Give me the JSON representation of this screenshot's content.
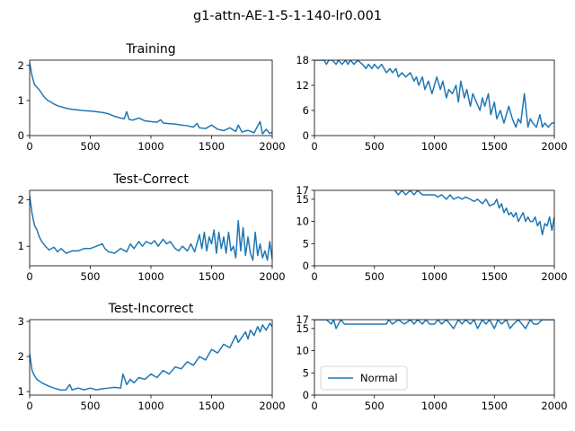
{
  "figure": {
    "suptitle": "g1-attn-AE-1-5-1-140-lr0.001"
  },
  "colors": {
    "line": "#1f77b4",
    "axes": "#000000",
    "background": "#ffffff"
  },
  "chart_data": [
    {
      "id": "training-loss",
      "type": "line",
      "title": "Training",
      "xlim": [
        0,
        2000
      ],
      "ylim": [
        0,
        2.15
      ],
      "xticks": [
        0,
        500,
        1000,
        1500,
        2000
      ],
      "yticks": [
        0,
        1,
        2
      ],
      "grid": false,
      "series": [
        {
          "x": [
            0,
            20,
            40,
            60,
            80,
            100,
            120,
            150,
            180,
            200,
            230,
            260,
            300,
            350,
            400,
            450,
            500,
            550,
            600,
            650,
            700,
            750,
            780,
            800,
            820,
            850,
            900,
            950,
            1000,
            1050,
            1080,
            1100,
            1150,
            1200,
            1250,
            1300,
            1350,
            1380,
            1400,
            1450,
            1500,
            1550,
            1600,
            1650,
            1700,
            1720,
            1750,
            1800,
            1850,
            1900,
            1920,
            1950,
            1980,
            2000
          ],
          "y": [
            2.08,
            1.7,
            1.45,
            1.38,
            1.3,
            1.2,
            1.1,
            1.0,
            0.95,
            0.9,
            0.85,
            0.82,
            0.78,
            0.75,
            0.73,
            0.71,
            0.7,
            0.68,
            0.66,
            0.62,
            0.55,
            0.5,
            0.48,
            0.68,
            0.46,
            0.44,
            0.5,
            0.42,
            0.4,
            0.38,
            0.45,
            0.36,
            0.34,
            0.33,
            0.3,
            0.28,
            0.24,
            0.35,
            0.22,
            0.2,
            0.3,
            0.18,
            0.14,
            0.22,
            0.12,
            0.3,
            0.1,
            0.15,
            0.08,
            0.4,
            0.05,
            0.18,
            0.06,
            0.1
          ]
        }
      ]
    },
    {
      "id": "training-errors",
      "type": "line",
      "title": "",
      "xlim": [
        0,
        2000
      ],
      "ylim": [
        0,
        18
      ],
      "xticks": [
        0,
        500,
        1000,
        1500,
        2000
      ],
      "yticks": [
        0,
        6,
        12,
        18
      ],
      "grid": false,
      "series": [
        {
          "x": [
            0,
            40,
            80,
            100,
            120,
            150,
            180,
            200,
            230,
            260,
            280,
            300,
            330,
            360,
            400,
            430,
            450,
            480,
            500,
            530,
            560,
            600,
            630,
            650,
            680,
            700,
            730,
            760,
            800,
            830,
            850,
            870,
            900,
            920,
            950,
            980,
            1000,
            1020,
            1050,
            1070,
            1100,
            1120,
            1150,
            1180,
            1200,
            1220,
            1250,
            1270,
            1300,
            1320,
            1350,
            1380,
            1400,
            1420,
            1450,
            1470,
            1500,
            1520,
            1550,
            1580,
            1600,
            1620,
            1650,
            1680,
            1700,
            1720,
            1750,
            1780,
            1800,
            1820,
            1850,
            1880,
            1900,
            1920,
            1950,
            1980,
            2000
          ],
          "y": [
            18,
            18,
            18,
            17,
            18,
            18,
            17,
            18,
            17,
            18,
            17,
            18,
            17,
            18,
            17,
            16,
            17,
            16,
            17,
            16,
            17,
            15,
            16,
            15,
            16,
            14,
            15,
            14,
            15,
            13,
            14,
            12,
            14,
            11,
            13,
            10,
            12,
            14,
            11,
            13,
            9,
            11,
            10,
            12,
            8,
            13,
            9,
            11,
            7,
            10,
            8,
            6,
            9,
            7,
            10,
            5,
            8,
            4,
            6,
            3,
            5,
            7,
            4,
            2,
            4,
            3,
            10,
            2,
            4,
            3,
            2,
            5,
            2,
            3,
            2,
            3,
            3
          ]
        }
      ]
    },
    {
      "id": "test-correct-loss",
      "type": "line",
      "title": "Test-Correct",
      "xlim": [
        0,
        2000
      ],
      "ylim": [
        0.58,
        2.2
      ],
      "xticks": [
        0,
        500,
        1000,
        1500,
        2000
      ],
      "yticks": [
        1,
        2
      ],
      "grid": false,
      "series": [
        {
          "x": [
            0,
            20,
            40,
            60,
            80,
            100,
            130,
            160,
            200,
            230,
            260,
            300,
            350,
            400,
            450,
            500,
            550,
            600,
            620,
            650,
            700,
            750,
            800,
            830,
            860,
            900,
            930,
            960,
            1000,
            1030,
            1060,
            1100,
            1130,
            1160,
            1200,
            1230,
            1260,
            1300,
            1330,
            1360,
            1400,
            1420,
            1440,
            1460,
            1480,
            1500,
            1520,
            1540,
            1560,
            1580,
            1600,
            1620,
            1640,
            1660,
            1680,
            1700,
            1720,
            1740,
            1760,
            1780,
            1800,
            1820,
            1840,
            1860,
            1880,
            1900,
            1920,
            1940,
            1960,
            1980,
            2000
          ],
          "y": [
            2.08,
            1.7,
            1.45,
            1.35,
            1.2,
            1.1,
            1.0,
            0.92,
            0.98,
            0.88,
            0.95,
            0.85,
            0.9,
            0.9,
            0.95,
            0.95,
            1.0,
            1.05,
            0.95,
            0.88,
            0.85,
            0.95,
            0.88,
            1.05,
            0.95,
            1.1,
            1.0,
            1.1,
            1.05,
            1.12,
            1.0,
            1.15,
            1.05,
            1.1,
            0.95,
            0.9,
            1.0,
            0.9,
            1.05,
            0.88,
            1.25,
            0.95,
            1.3,
            0.9,
            1.2,
            1.05,
            1.35,
            0.85,
            1.3,
            0.95,
            1.2,
            0.85,
            1.3,
            0.9,
            1.0,
            0.75,
            1.55,
            0.9,
            1.4,
            0.8,
            1.2,
            0.85,
            0.7,
            1.3,
            0.8,
            1.05,
            0.75,
            0.9,
            0.7,
            1.1,
            0.72
          ]
        }
      ]
    },
    {
      "id": "test-correct-count",
      "type": "line",
      "title": "",
      "xlim": [
        0,
        2000
      ],
      "ylim": [
        0,
        17
      ],
      "xticks": [
        0,
        500,
        1000,
        1500,
        2000
      ],
      "yticks": [
        0,
        5,
        10,
        15,
        17
      ],
      "grid": false,
      "series": [
        {
          "x": [
            670,
            700,
            730,
            760,
            800,
            830,
            860,
            900,
            930,
            960,
            1000,
            1030,
            1060,
            1100,
            1130,
            1160,
            1200,
            1230,
            1260,
            1300,
            1330,
            1360,
            1400,
            1430,
            1460,
            1500,
            1520,
            1540,
            1560,
            1580,
            1600,
            1620,
            1640,
            1660,
            1680,
            1700,
            1720,
            1740,
            1760,
            1780,
            1800,
            1820,
            1840,
            1860,
            1880,
            1900,
            1920,
            1940,
            1960,
            1980,
            2000
          ],
          "y": [
            17,
            16,
            17,
            16,
            17,
            16,
            17,
            16,
            16,
            16,
            16,
            15.5,
            16,
            15,
            16,
            15,
            15.5,
            15,
            15.5,
            15,
            14.5,
            15,
            14,
            15,
            13.5,
            14,
            15,
            13,
            14,
            12,
            13,
            11.5,
            12,
            11,
            12,
            10,
            11,
            12,
            10,
            11,
            10,
            10,
            11,
            9,
            10,
            7,
            9.5,
            9,
            11,
            8,
            11
          ]
        }
      ]
    },
    {
      "id": "test-incorrect-loss",
      "type": "line",
      "title": "Test-Incorrect",
      "xlim": [
        0,
        2000
      ],
      "ylim": [
        0.9,
        3.05
      ],
      "xticks": [
        0,
        500,
        1000,
        1500,
        2000
      ],
      "yticks": [
        1,
        2,
        3
      ],
      "grid": false,
      "series": [
        {
          "x": [
            0,
            20,
            40,
            60,
            80,
            100,
            130,
            160,
            200,
            230,
            260,
            300,
            330,
            350,
            380,
            400,
            450,
            500,
            550,
            600,
            650,
            700,
            750,
            770,
            800,
            830,
            860,
            900,
            950,
            1000,
            1050,
            1100,
            1150,
            1200,
            1250,
            1300,
            1350,
            1400,
            1450,
            1500,
            1550,
            1600,
            1650,
            1700,
            1720,
            1750,
            1780,
            1800,
            1820,
            1850,
            1880,
            1900,
            1920,
            1950,
            1980,
            2000
          ],
          "y": [
            2.08,
            1.6,
            1.45,
            1.35,
            1.3,
            1.25,
            1.2,
            1.15,
            1.1,
            1.07,
            1.04,
            1.05,
            1.2,
            1.05,
            1.08,
            1.1,
            1.05,
            1.1,
            1.05,
            1.08,
            1.1,
            1.12,
            1.1,
            1.5,
            1.2,
            1.35,
            1.25,
            1.4,
            1.35,
            1.5,
            1.4,
            1.6,
            1.5,
            1.7,
            1.65,
            1.85,
            1.75,
            2.0,
            1.9,
            2.2,
            2.1,
            2.35,
            2.25,
            2.6,
            2.4,
            2.55,
            2.7,
            2.5,
            2.75,
            2.6,
            2.85,
            2.7,
            2.9,
            2.75,
            2.95,
            2.85
          ]
        }
      ]
    },
    {
      "id": "test-incorrect-count",
      "type": "line",
      "title": "",
      "xlim": [
        0,
        2000
      ],
      "ylim": [
        0,
        17
      ],
      "xticks": [
        0,
        500,
        1000,
        1500,
        2000
      ],
      "yticks": [
        0,
        5,
        10,
        15,
        17
      ],
      "grid": false,
      "legend": {
        "entries": [
          "Normal"
        ],
        "location": "lower-left"
      },
      "series": [
        {
          "name": "Normal",
          "x": [
            0,
            50,
            100,
            140,
            160,
            180,
            200,
            220,
            250,
            300,
            350,
            400,
            450,
            500,
            550,
            600,
            620,
            650,
            700,
            750,
            800,
            830,
            860,
            900,
            930,
            960,
            1000,
            1030,
            1060,
            1100,
            1130,
            1160,
            1200,
            1230,
            1260,
            1300,
            1330,
            1360,
            1400,
            1430,
            1460,
            1500,
            1530,
            1560,
            1600,
            1630,
            1660,
            1700,
            1730,
            1760,
            1800,
            1830,
            1860,
            1900,
            1930,
            1960,
            2000
          ],
          "y": [
            17,
            17,
            17,
            16,
            17,
            15,
            16,
            17,
            16,
            16,
            16,
            16,
            16,
            16,
            16,
            16,
            17,
            16,
            17,
            16,
            17,
            16,
            17,
            16,
            17,
            16,
            16,
            17,
            16,
            17,
            16,
            15,
            17,
            16,
            17,
            16,
            17,
            15,
            17,
            16,
            17,
            15,
            17,
            16,
            17,
            15,
            16,
            17,
            16,
            15,
            17,
            16,
            16,
            17,
            17,
            17,
            17
          ]
        }
      ]
    }
  ]
}
